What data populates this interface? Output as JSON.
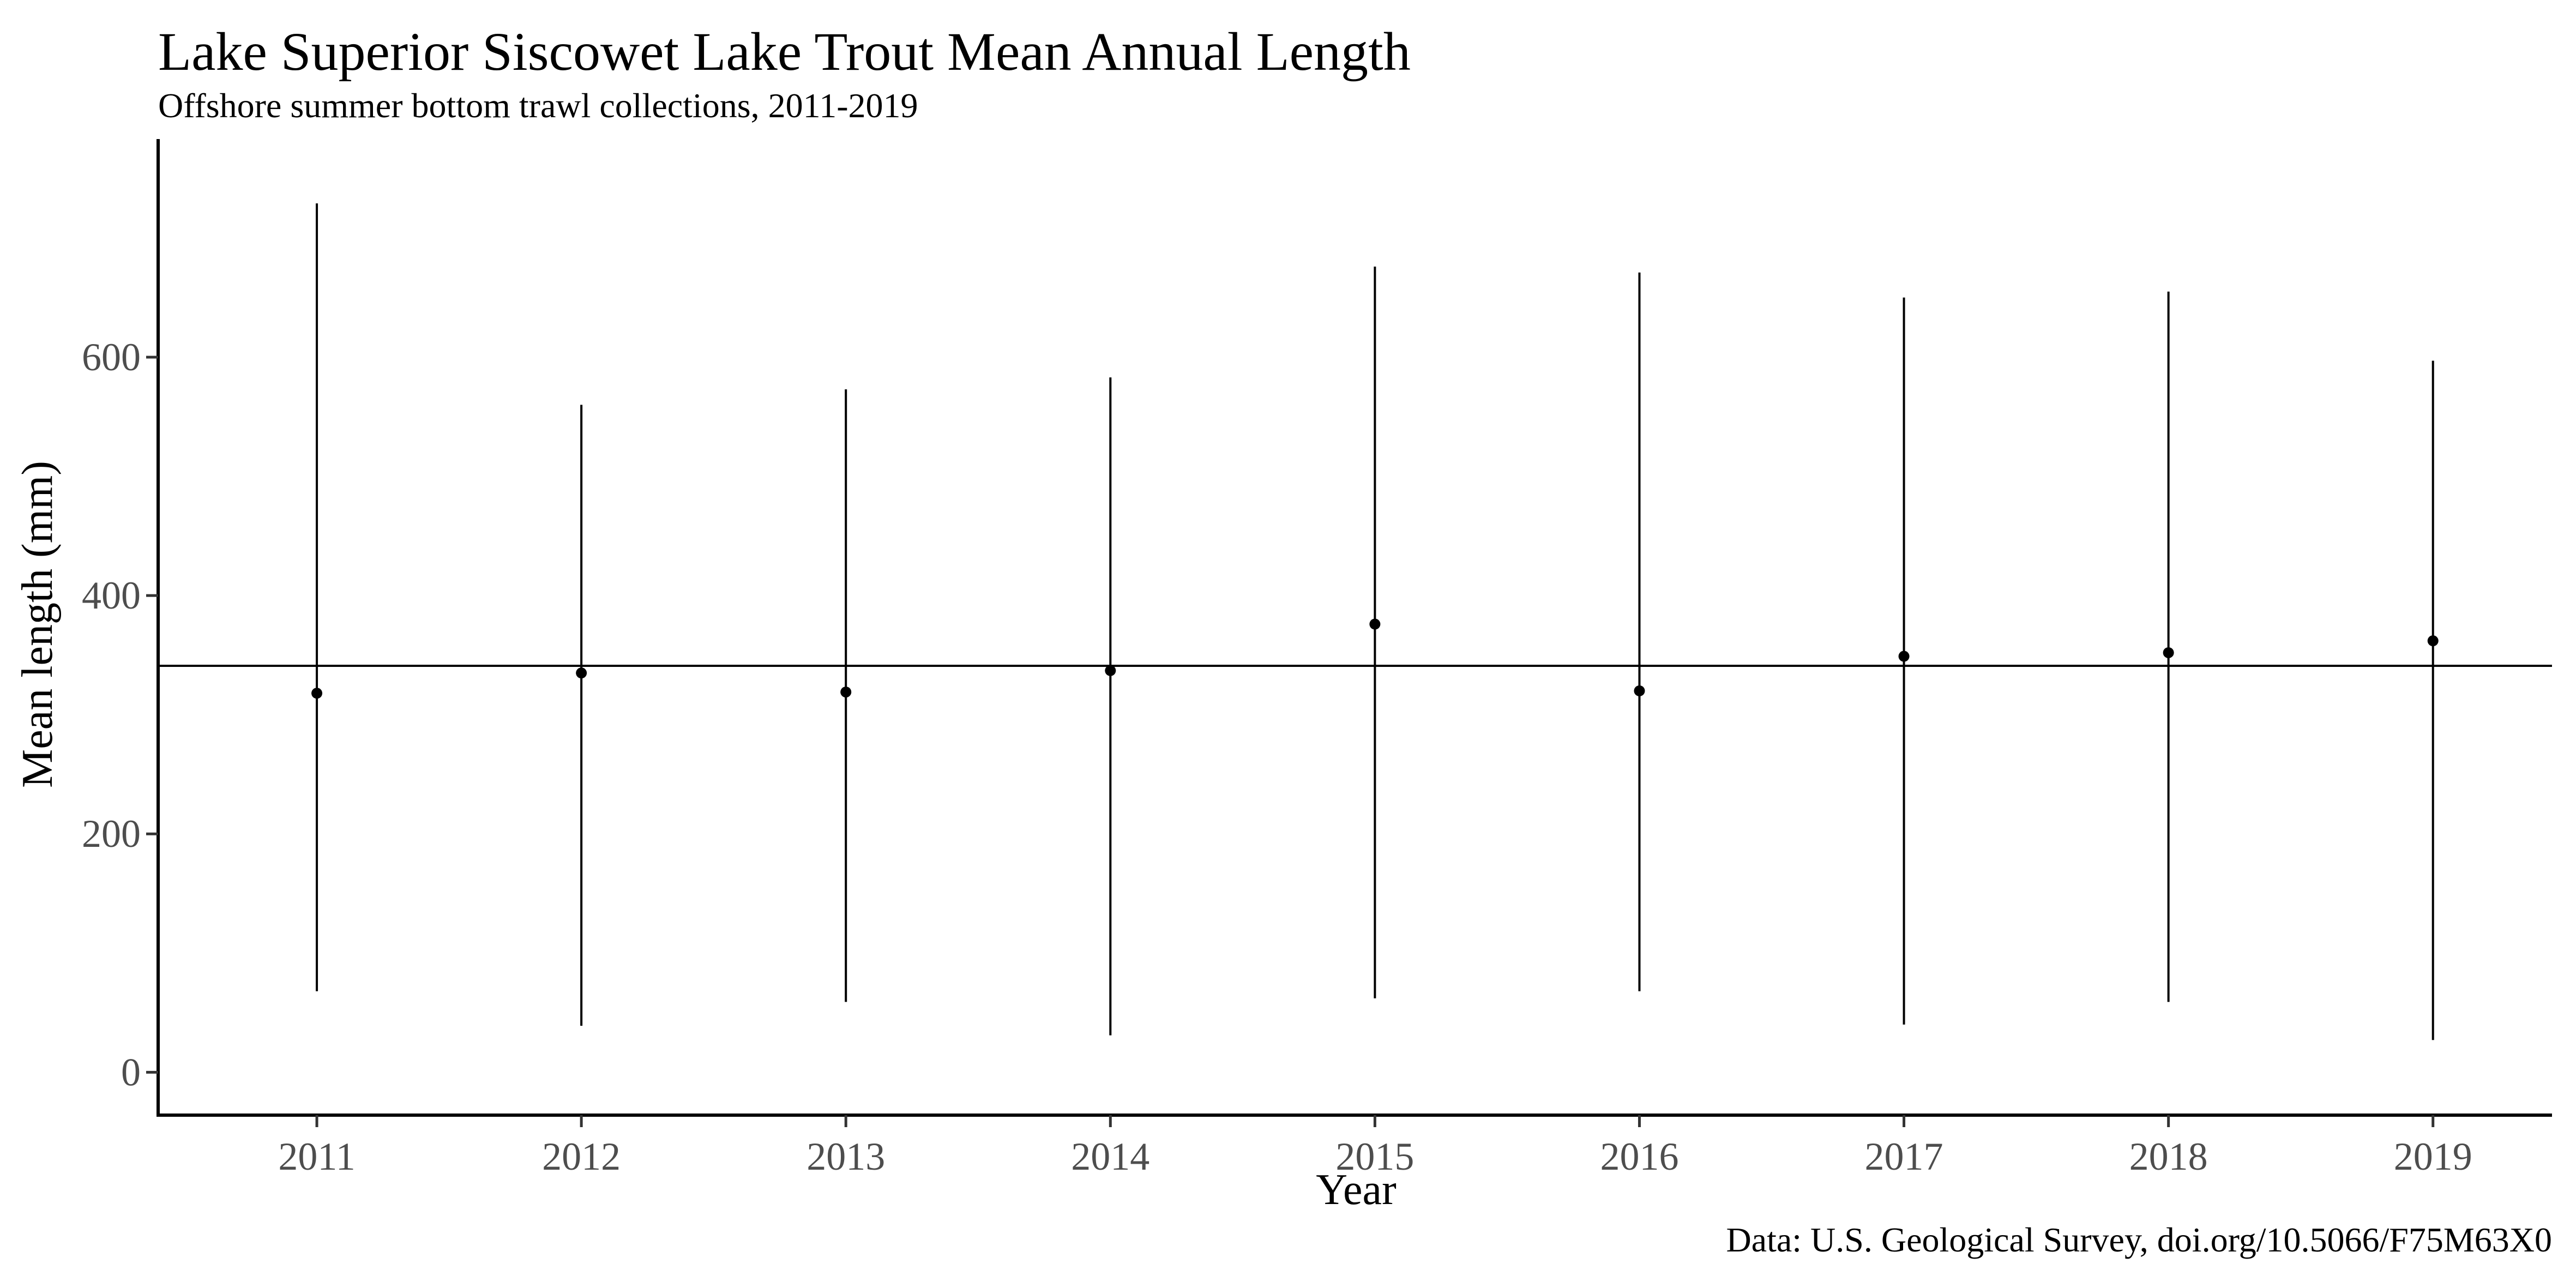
{
  "chart_data": {
    "type": "scatter",
    "title": "Lake Superior Siscowet Lake Trout Mean Annual Length",
    "subtitle": "Offshore summer bottom trawl collections, 2011-2019",
    "xlabel": "Year",
    "ylabel": "Mean length (mm)",
    "caption": "Data: U.S. Geological Survey, doi.org/10.5066/F75M63X0",
    "categories": [
      "2011",
      "2012",
      "2013",
      "2014",
      "2015",
      "2016",
      "2017",
      "2018",
      "2019"
    ],
    "values": [
      318,
      335,
      319,
      337,
      376,
      320,
      349,
      352,
      362
    ],
    "error_low": [
      68,
      39,
      59,
      31,
      62,
      68,
      40,
      59,
      27
    ],
    "error_high": [
      729,
      560,
      573,
      583,
      676,
      671,
      650,
      655,
      597
    ],
    "reference_line": 341,
    "ylim": [
      -36,
      783
    ],
    "yticks": [
      0,
      200,
      400,
      600
    ],
    "grid": false,
    "legend": "none",
    "colors": {
      "point": "#000000",
      "line": "#000000",
      "tick_label": "#4d4d4d"
    }
  }
}
